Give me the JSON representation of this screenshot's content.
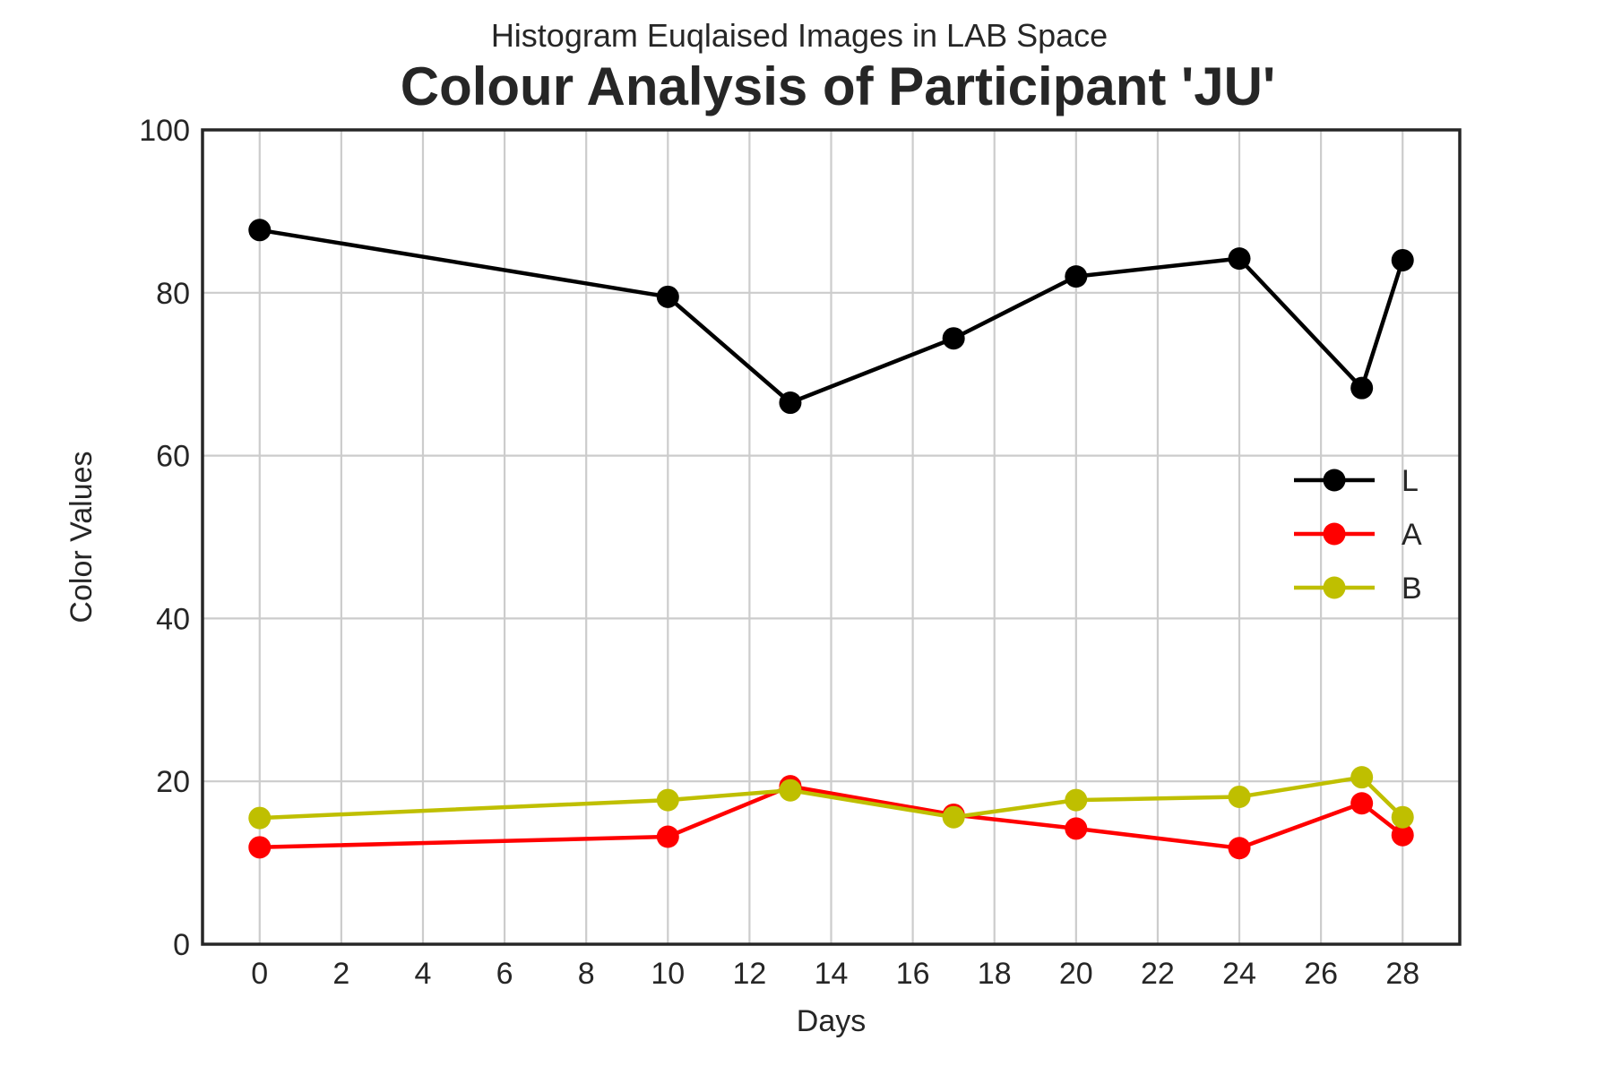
{
  "chart_data": {
    "type": "line",
    "subtitle": "Histogram Euqlaised Images in LAB Space",
    "title": "Colour Analysis of Participant 'JU'",
    "xlabel": "Days",
    "ylabel": "Color Values",
    "xlim": [
      -1.4,
      29.4
    ],
    "ylim": [
      0,
      100
    ],
    "xticks": [
      0,
      2,
      4,
      6,
      8,
      10,
      12,
      14,
      16,
      18,
      20,
      22,
      24,
      26,
      28
    ],
    "yticks": [
      0,
      20,
      40,
      60,
      80,
      100
    ],
    "grid": true,
    "legend_position": "center-right",
    "x": [
      0,
      10,
      13,
      17,
      20,
      24,
      27,
      28
    ],
    "series": [
      {
        "name": "L",
        "color": "#000000",
        "values": [
          87.7,
          79.5,
          66.5,
          74.4,
          82.0,
          84.2,
          68.3,
          84.0
        ]
      },
      {
        "name": "A",
        "color": "#ff0000",
        "values": [
          11.9,
          13.2,
          19.4,
          15.9,
          14.2,
          11.8,
          17.3,
          13.4
        ]
      },
      {
        "name": "B",
        "color": "#bfbf00",
        "values": [
          15.5,
          17.7,
          18.9,
          15.6,
          17.7,
          18.1,
          20.5,
          15.6
        ]
      }
    ]
  }
}
